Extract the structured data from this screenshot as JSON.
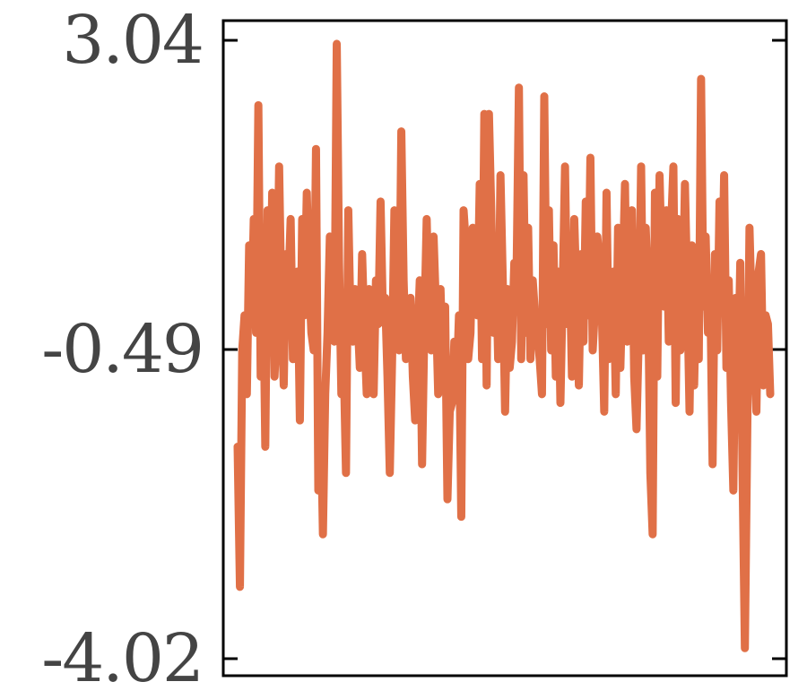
{
  "chart_data": {
    "type": "line",
    "title": "",
    "xlabel": "",
    "ylabel": "",
    "ylim": [
      -4.02,
      3.04
    ],
    "yticks": [
      {
        "value": 3.04,
        "label": "3.04"
      },
      {
        "value": -0.49,
        "label": "-0.49"
      },
      {
        "value": -4.02,
        "label": "-4.02"
      }
    ],
    "xticks": [],
    "grid": false,
    "legend": "none",
    "color": "#e07047",
    "series": [
      {
        "values": [
          -1.6,
          -3.2,
          -0.5,
          -0.1,
          -1.0,
          0.7,
          -0.2,
          1.0,
          -0.3,
          2.3,
          -0.8,
          0.5,
          -1.6,
          1.1,
          -0.4,
          1.3,
          -0.8,
          -0.2,
          1.6,
          0.0,
          -0.9,
          0.6,
          0.2,
          1.0,
          -0.6,
          -0.4,
          0.4,
          -1.3,
          1.0,
          -0.1,
          1.3,
          0.3,
          -0.3,
          -0.5,
          1.8,
          -2.1,
          -1.1,
          -2.6,
          -1.0,
          -0.3,
          0.8,
          -0.2,
          -0.4,
          3.0,
          0.5,
          -1.0,
          -0.6,
          -1.9,
          1.1,
          -0.2,
          -0.4,
          0.2,
          -0.1,
          -0.7,
          0.6,
          -0.3,
          -1.0,
          0.2,
          -0.6,
          -1.0,
          0.3,
          -0.2,
          1.2,
          -0.1,
          0.1,
          -0.8,
          -1.9,
          -0.6,
          1.1,
          0.1,
          -0.5,
          2.0,
          0.3,
          -0.6,
          -0.2,
          0.1,
          -0.8,
          -1.3,
          -0.4,
          0.3,
          -1.8,
          -0.2,
          1.0,
          -0.1,
          -0.5,
          0.8,
          0.0,
          -1.0,
          0.2,
          -0.7,
          0.0,
          -2.2,
          -1.2,
          -1.1,
          -0.4,
          -0.9,
          -0.1,
          -2.4,
          1.1,
          0.7,
          -0.6,
          -0.3,
          0.9,
          0.2,
          -0.1,
          1.4,
          -0.6,
          2.2,
          -0.9,
          2.2,
          1.1,
          -0.3,
          0.6,
          -0.6,
          1.5,
          0.3,
          -1.2,
          0.2,
          -0.7,
          -0.4,
          0.5,
          0.4,
          2.5,
          -0.6,
          1.5,
          -0.3,
          0.9,
          -0.6,
          0.3,
          -0.1,
          -0.3,
          -0.6,
          -1.0,
          2.4,
          -0.2,
          1.1,
          -0.5,
          0.7,
          -0.8,
          0.4,
          -1.1,
          0.2,
          1.6,
          -0.2,
          0.5,
          -0.8,
          1.0,
          0.1,
          -0.9,
          0.6,
          -0.4,
          1.2,
          -0.1,
          1.7,
          -0.5,
          0.0,
          0.8,
          0.5,
          -0.1,
          -1.2,
          1.3,
          -0.6,
          -0.3,
          0.4,
          -1.0,
          0.9,
          -0.7,
          0.3,
          1.4,
          -0.4,
          0.0,
          1.1,
          -0.8,
          -1.4,
          -0.3,
          1.6,
          -0.5,
          0.9,
          0.2,
          -1.9,
          -2.6,
          1.3,
          -0.8,
          1.5,
          0.4,
          0.0,
          1.1,
          -0.4,
          0.9,
          1.6,
          -1.1,
          1.0,
          -0.5,
          -0.1,
          1.4,
          0.2,
          -1.2,
          0.7,
          -0.9,
          0.4,
          -0.6,
          2.6,
          0.0,
          0.8,
          -0.3,
          0.2,
          -1.8,
          0.6,
          -0.5,
          1.2,
          0.0,
          1.5,
          -0.7,
          0.3,
          -1.1,
          -2.1,
          0.1,
          -0.9,
          0.5,
          -1.9,
          -3.9,
          -1.5,
          0.9,
          -0.1,
          -0.5,
          -1.2,
          0.4,
          0.6,
          -0.9,
          -0.1,
          -0.2,
          -1.0
        ]
      }
    ]
  }
}
